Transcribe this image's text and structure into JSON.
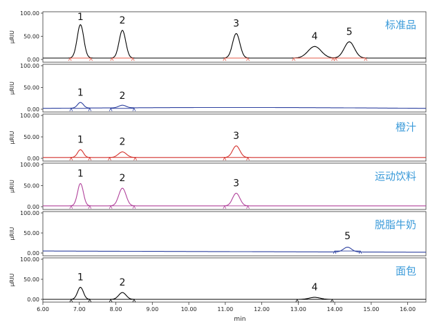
{
  "y_unit_label": "µRIU",
  "x_axis_label": "min",
  "x_ticks": [
    "6.00",
    "7.00",
    "8.00",
    "9.00",
    "10.00",
    "11.00",
    "12.00",
    "13.00",
    "14.00",
    "15.00",
    "16.00"
  ],
  "y_ticks": [
    "0.00",
    "50.00",
    "100.00"
  ],
  "peak_color_note": "",
  "chart_data": [
    {
      "type": "line",
      "label": "标准品",
      "label_color": "#3a9ad9",
      "trace_color": "#000000",
      "peak_color": "#e05a4a",
      "xlim": [
        6.0,
        16.5
      ],
      "ylim": [
        0,
        100
      ],
      "baseline": 3,
      "peaks": [
        {
          "id": "1",
          "x": 7.03,
          "height": 72,
          "width": 0.09
        },
        {
          "id": "2",
          "x": 8.18,
          "height": 60,
          "width": 0.09
        },
        {
          "id": "3",
          "x": 11.3,
          "height": 53,
          "width": 0.1
        },
        {
          "id": "4",
          "x": 13.45,
          "height": 25,
          "width": 0.18
        },
        {
          "id": "5",
          "x": 14.4,
          "height": 35,
          "width": 0.14
        }
      ]
    },
    {
      "type": "line",
      "label": "",
      "label_color": "#3a9ad9",
      "trace_color": "#2b3f9e",
      "peak_color": "#2b3f9e",
      "xlim": [
        6.0,
        16.5
      ],
      "ylim": [
        0,
        100
      ],
      "baseline": 2,
      "peaks": [
        {
          "id": "1",
          "x": 7.03,
          "height": 13,
          "width": 0.08
        },
        {
          "id": "2",
          "x": 8.18,
          "height": 6,
          "width": 0.1
        }
      ]
    },
    {
      "type": "line",
      "label": "橙汁",
      "label_color": "#3a9ad9",
      "trace_color": "#d4302b",
      "peak_color": "#d4302b",
      "xlim": [
        6.0,
        16.5
      ],
      "ylim": [
        0,
        100
      ],
      "baseline": 2,
      "peaks": [
        {
          "id": "1",
          "x": 7.03,
          "height": 18,
          "width": 0.08
        },
        {
          "id": "2",
          "x": 8.18,
          "height": 13,
          "width": 0.11
        },
        {
          "id": "3",
          "x": 11.3,
          "height": 27,
          "width": 0.1
        }
      ]
    },
    {
      "type": "line",
      "label": "运动饮料",
      "label_color": "#3a9ad9",
      "trace_color": "#b0409a",
      "peak_color": "#b0409a",
      "xlim": [
        6.0,
        16.5
      ],
      "ylim": [
        0,
        100
      ],
      "baseline": 2,
      "peaks": [
        {
          "id": "1",
          "x": 7.03,
          "height": 53,
          "width": 0.08
        },
        {
          "id": "2",
          "x": 8.18,
          "height": 42,
          "width": 0.1
        },
        {
          "id": "3",
          "x": 11.3,
          "height": 30,
          "width": 0.1
        }
      ]
    },
    {
      "type": "line",
      "label": "脱脂牛奶",
      "label_color": "#3a9ad9",
      "trace_color": "#2b3f9e",
      "peak_color": "#2b3f9e",
      "xlim": [
        6.0,
        16.5
      ],
      "ylim": [
        0,
        100
      ],
      "baseline": 5,
      "peaks": [
        {
          "id": "5",
          "x": 14.35,
          "height": 12,
          "width": 0.11
        }
      ]
    },
    {
      "type": "line",
      "label": "面包",
      "label_color": "#3a9ad9",
      "trace_color": "#000000",
      "peak_color": "#000000",
      "xlim": [
        6.0,
        16.5
      ],
      "ylim": [
        0,
        100
      ],
      "baseline": 0,
      "peaks": [
        {
          "id": "1",
          "x": 7.03,
          "height": 30,
          "width": 0.08
        },
        {
          "id": "2",
          "x": 8.18,
          "height": 17,
          "width": 0.1
        },
        {
          "id": "4",
          "x": 13.45,
          "height": 5,
          "width": 0.15
        }
      ]
    }
  ]
}
